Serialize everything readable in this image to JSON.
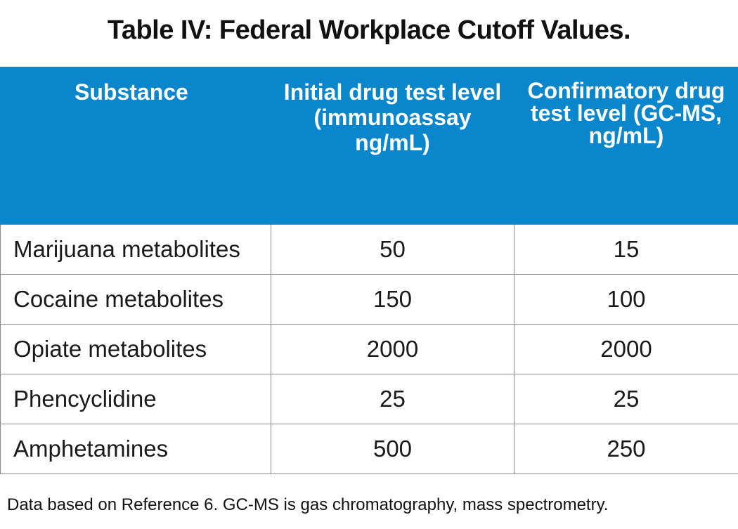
{
  "title": "Table IV: Federal Workplace Cutoff Values.",
  "table": {
    "headers": {
      "substance": "Substance",
      "initial": "Initial drug test level (immunoassay ng/mL)",
      "confirmatory": "Confirmatory drug test level (GC-MS, ng/mL)"
    },
    "rows": [
      {
        "substance": "Marijuana metabolites",
        "initial": "50",
        "confirmatory": "15"
      },
      {
        "substance": "Cocaine metabolites",
        "initial": "150",
        "confirmatory": "100"
      },
      {
        "substance": "Opiate metabolites",
        "initial": "2000",
        "confirmatory": "2000"
      },
      {
        "substance": "Phencyclidine",
        "initial": "25",
        "confirmatory": "25"
      },
      {
        "substance": "Amphetamines",
        "initial": "500",
        "confirmatory": "250"
      }
    ]
  },
  "footnote": "Data based on Reference 6. GC-MS is gas chromatography, mass spectrometry.",
  "colors": {
    "header_background": "#0a86cc",
    "header_text": "#ffffff",
    "grid_lines": "#8a8a8a"
  }
}
